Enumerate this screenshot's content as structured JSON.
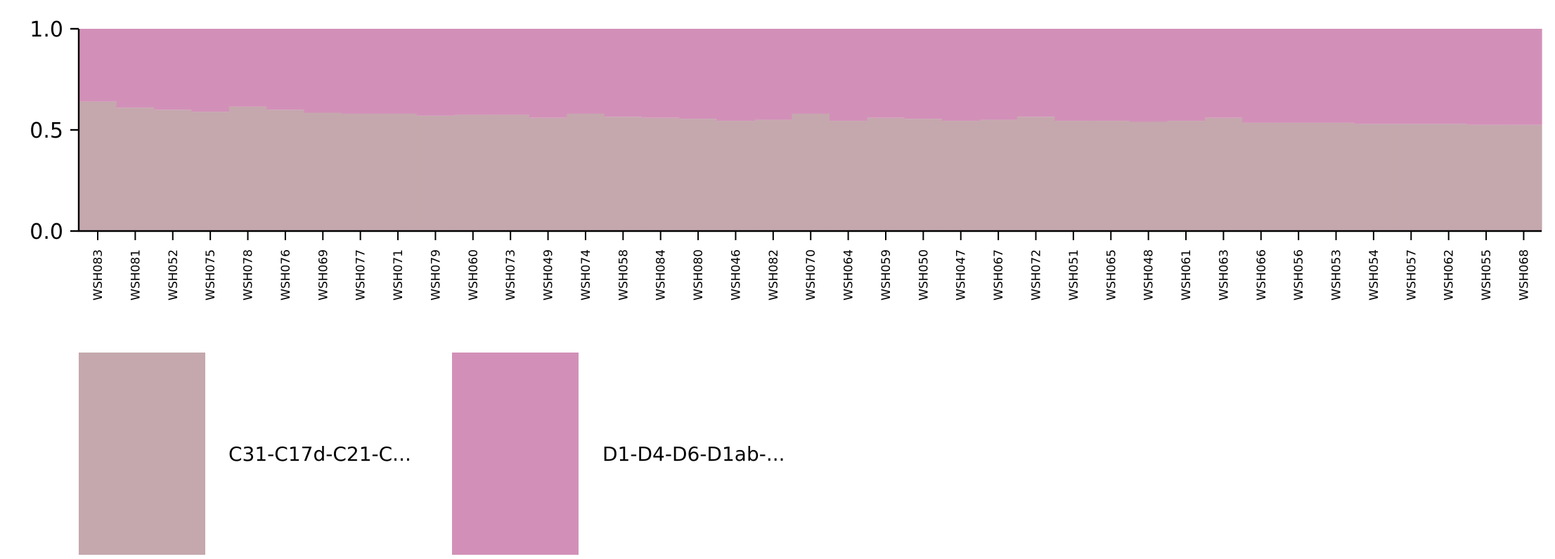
{
  "chart_data": {
    "type": "bar",
    "stacked": true,
    "normalized": true,
    "title": "",
    "xlabel": "",
    "ylabel": "",
    "ylim": [
      0,
      1
    ],
    "yticks": [
      "0.0",
      "0.5",
      "1.0"
    ],
    "yticks_values": [
      0,
      0.5,
      1
    ],
    "legend_position": "below",
    "grid": false,
    "categories": [
      "WSH083",
      "WSH081",
      "WSH052",
      "WSH075",
      "WSH078",
      "WSH076",
      "WSH069",
      "WSH077",
      "WSH071",
      "WSH079",
      "WSH060",
      "WSH073",
      "WSH049",
      "WSH074",
      "WSH058",
      "WSH084",
      "WSH080",
      "WSH046",
      "WSH082",
      "WSH070",
      "WSH064",
      "WSH059",
      "WSH050",
      "WSH047",
      "WSH067",
      "WSH072",
      "WSH051",
      "WSH065",
      "WSH048",
      "WSH061",
      "WSH063",
      "WSH066",
      "WSH056",
      "WSH053",
      "WSH054",
      "WSH057",
      "WSH062",
      "WSH055",
      "WSH068"
    ],
    "series": [
      {
        "name": "C31-C17d-C21-C...",
        "color": "#c4a8ad",
        "values": [
          0.64,
          0.61,
          0.6,
          0.59,
          0.615,
          0.6,
          0.585,
          0.58,
          0.58,
          0.57,
          0.575,
          0.575,
          0.56,
          0.58,
          0.565,
          0.56,
          0.555,
          0.545,
          0.55,
          0.58,
          0.545,
          0.56,
          0.555,
          0.545,
          0.55,
          0.565,
          0.545,
          0.545,
          0.54,
          0.545,
          0.56,
          0.535,
          0.535,
          0.535,
          0.53,
          0.53,
          0.53,
          0.525,
          0.525
        ]
      },
      {
        "name": "D1-D4-D6-D1ab-...",
        "color": "#d290b8",
        "values": [
          0.36,
          0.39,
          0.4,
          0.41,
          0.385,
          0.4,
          0.415,
          0.42,
          0.42,
          0.43,
          0.425,
          0.425,
          0.44,
          0.42,
          0.435,
          0.44,
          0.445,
          0.455,
          0.45,
          0.42,
          0.455,
          0.44,
          0.445,
          0.455,
          0.45,
          0.435,
          0.455,
          0.455,
          0.46,
          0.455,
          0.44,
          0.465,
          0.465,
          0.465,
          0.47,
          0.47,
          0.47,
          0.475,
          0.475
        ]
      }
    ]
  }
}
